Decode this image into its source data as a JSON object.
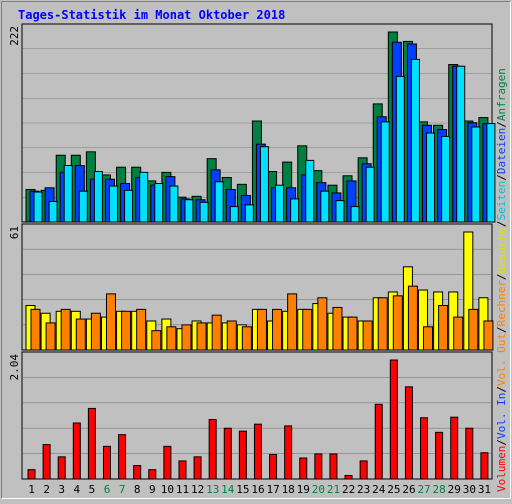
{
  "title": "Tages-Statistik im Monat Oktober 2018",
  "colors": {
    "background": "#c0c0c0",
    "panel": "#c0c0c0",
    "title": "#0000ff",
    "hits": "#008040",
    "files": "#0040ff",
    "pages": "#00e0ff",
    "visits": "#ffff00",
    "sites": "#ff8000",
    "kbytes": "#ff0000",
    "weekend_label": "#008040"
  },
  "right_legend": {
    "top": [
      {
        "text": "Anfragen",
        "color": "#008040"
      },
      {
        "text": "/",
        "color": "#000000"
      },
      {
        "text": "Dateien",
        "color": "#0040ff"
      },
      {
        "text": "/",
        "color": "#000000"
      },
      {
        "text": "Seiten",
        "color": "#00c0e0"
      },
      {
        "text": "/",
        "color": "#000000"
      },
      {
        "text": "Besuche",
        "color": "#e0e000"
      },
      {
        "text": "/",
        "color": "#000000"
      },
      {
        "text": "Rechner",
        "color": "#ff8000"
      },
      {
        "text": "/",
        "color": "#000000"
      },
      {
        "text": "Vol. Out",
        "color": "#ff8000"
      },
      {
        "text": "/",
        "color": "#000000"
      },
      {
        "text": "Vol. In",
        "color": "#0040ff"
      },
      {
        "text": "/",
        "color": "#000000"
      },
      {
        "text": "Volumen",
        "color": "#ff0000"
      }
    ]
  },
  "chart_data": [
    {
      "type": "bar",
      "panel": "top",
      "ymax_label": "222",
      "ylim": [
        0,
        222
      ],
      "x": [
        "1",
        "2",
        "3",
        "4",
        "5",
        "6",
        "7",
        "8",
        "9",
        "10",
        "11",
        "12",
        "13",
        "14",
        "15",
        "16",
        "17",
        "18",
        "19",
        "20",
        "21",
        "22",
        "23",
        "24",
        "25",
        "26",
        "27",
        "28",
        "29",
        "30",
        "31"
      ],
      "weekend_days": [
        "6",
        "7",
        "13",
        "14",
        "20",
        "21",
        "27",
        "28"
      ],
      "series": [
        {
          "name": "Anfragen",
          "values": [
            38,
            37,
            78,
            78,
            82,
            55,
            64,
            64,
            48,
            58,
            29,
            30,
            74,
            52,
            44,
            118,
            59,
            70,
            89,
            60,
            43,
            54,
            75,
            138,
            222,
            211,
            117,
            113,
            184,
            118,
            122
          ]
        },
        {
          "name": "Dateien",
          "values": [
            36,
            40,
            58,
            66,
            50,
            50,
            45,
            52,
            43,
            53,
            27,
            26,
            61,
            38,
            31,
            91,
            40,
            40,
            55,
            46,
            34,
            48,
            68,
            123,
            210,
            208,
            113,
            108,
            182,
            116,
            115
          ]
        },
        {
          "name": "Seiten",
          "values": [
            35,
            24,
            66,
            36,
            59,
            42,
            37,
            58,
            45,
            42,
            26,
            23,
            47,
            18,
            20,
            88,
            43,
            27,
            72,
            36,
            25,
            18,
            64,
            117,
            170,
            190,
            104,
            100,
            182,
            111,
            115
          ]
        }
      ]
    },
    {
      "type": "bar",
      "panel": "middle",
      "ymax_label": "61",
      "ylim": [
        0,
        61
      ],
      "x": [
        "1",
        "2",
        "3",
        "4",
        "5",
        "6",
        "7",
        "8",
        "9",
        "10",
        "11",
        "12",
        "13",
        "14",
        "15",
        "16",
        "17",
        "18",
        "19",
        "20",
        "21",
        "22",
        "23",
        "24",
        "25",
        "26",
        "27",
        "28",
        "29",
        "30",
        "31"
      ],
      "series": [
        {
          "name": "Besuche",
          "values": [
            23,
            19,
            20,
            20,
            16,
            17,
            20,
            20,
            15,
            16,
            11,
            15,
            14,
            14,
            13,
            21,
            15,
            20,
            21,
            24,
            19,
            17,
            15,
            27,
            30,
            43,
            31,
            30,
            30,
            61,
            27
          ]
        },
        {
          "name": "Rechner",
          "values": [
            21,
            14,
            21,
            16,
            19,
            29,
            20,
            21,
            10,
            12,
            13,
            14,
            18,
            15,
            12,
            21,
            21,
            29,
            21,
            27,
            22,
            17,
            15,
            27,
            28,
            33,
            12,
            23,
            17,
            21,
            15
          ]
        }
      ]
    },
    {
      "type": "bar",
      "panel": "bottom",
      "ymax_label": "2.04",
      "ylim": [
        0,
        2.04
      ],
      "x": [
        "1",
        "2",
        "3",
        "4",
        "5",
        "6",
        "7",
        "8",
        "9",
        "10",
        "11",
        "12",
        "13",
        "14",
        "15",
        "16",
        "17",
        "18",
        "19",
        "20",
        "21",
        "22",
        "23",
        "24",
        "25",
        "26",
        "27",
        "28",
        "29",
        "30",
        "31"
      ],
      "series": [
        {
          "name": "Volumen",
          "values": [
            0.16,
            0.59,
            0.38,
            0.96,
            1.21,
            0.56,
            0.76,
            0.23,
            0.16,
            0.56,
            0.31,
            0.38,
            1.02,
            0.87,
            0.82,
            0.94,
            0.42,
            0.91,
            0.36,
            0.43,
            0.43,
            0.06,
            0.31,
            1.28,
            2.04,
            1.58,
            1.05,
            0.8,
            1.06,
            0.87,
            0.45
          ]
        }
      ]
    }
  ]
}
